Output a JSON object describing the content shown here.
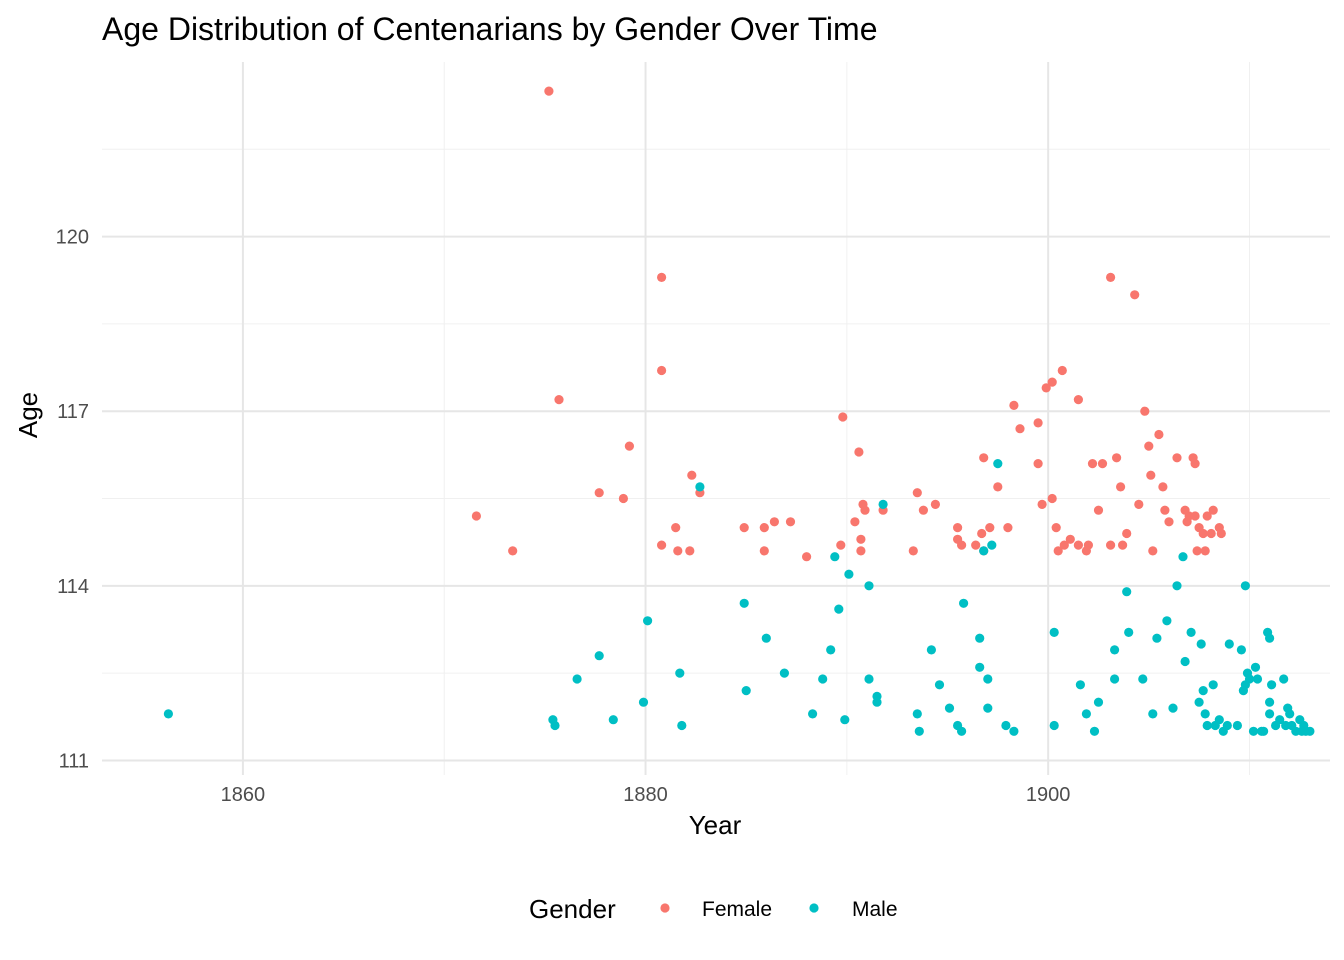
{
  "chart_data": {
    "type": "scatter",
    "title": "Age Distribution of Centenarians by Gender Over Time",
    "xlabel": "Year",
    "ylabel": "Age",
    "xlim": [
      1853,
      1914
    ],
    "ylim": [
      110.75,
      123.0
    ],
    "x_ticks": [
      1860,
      1880,
      1900
    ],
    "x_minor": [
      1850,
      1870,
      1890,
      1910
    ],
    "y_ticks": [
      111,
      114,
      117,
      120
    ],
    "y_minor": [
      112.5,
      115.5,
      118.5,
      121.5
    ],
    "grid": true,
    "legend_position": "bottom",
    "legend_title": "Gender",
    "colors": {
      "Female": "#F8766D",
      "Male": "#00BFC4"
    },
    "series": [
      {
        "name": "Female",
        "points": [
          [
            1875.2,
            122.5
          ],
          [
            1875.7,
            117.2
          ],
          [
            1871.6,
            115.2
          ],
          [
            1873.4,
            114.6
          ],
          [
            1877.7,
            115.6
          ],
          [
            1878.9,
            115.5
          ],
          [
            1879.2,
            116.4
          ],
          [
            1880.8,
            119.3
          ],
          [
            1880.8,
            117.7
          ],
          [
            1880.8,
            114.7
          ],
          [
            1881.5,
            115.0
          ],
          [
            1881.6,
            114.6
          ],
          [
            1882.2,
            114.6
          ],
          [
            1882.3,
            115.9
          ],
          [
            1882.7,
            115.6
          ],
          [
            1884.9,
            115.0
          ],
          [
            1885.9,
            114.6
          ],
          [
            1885.9,
            115.0
          ],
          [
            1886.4,
            115.1
          ],
          [
            1887.2,
            115.1
          ],
          [
            1888.0,
            114.5
          ],
          [
            1889.7,
            114.7
          ],
          [
            1889.8,
            116.9
          ],
          [
            1890.4,
            115.1
          ],
          [
            1890.6,
            116.3
          ],
          [
            1890.7,
            114.6
          ],
          [
            1890.7,
            114.8
          ],
          [
            1890.8,
            115.4
          ],
          [
            1890.9,
            115.3
          ],
          [
            1891.8,
            115.3
          ],
          [
            1893.3,
            114.6
          ],
          [
            1893.5,
            115.6
          ],
          [
            1893.8,
            115.3
          ],
          [
            1894.4,
            115.4
          ],
          [
            1895.5,
            115.0
          ],
          [
            1895.5,
            114.8
          ],
          [
            1895.7,
            114.7
          ],
          [
            1896.4,
            114.7
          ],
          [
            1896.7,
            114.9
          ],
          [
            1896.8,
            116.2
          ],
          [
            1896.8,
            114.6
          ],
          [
            1897.1,
            115.0
          ],
          [
            1897.5,
            115.7
          ],
          [
            1898.0,
            115.0
          ],
          [
            1898.3,
            117.1
          ],
          [
            1898.6,
            116.7
          ],
          [
            1899.5,
            116.8
          ],
          [
            1899.5,
            116.1
          ],
          [
            1899.7,
            115.4
          ],
          [
            1899.9,
            117.4
          ],
          [
            1900.2,
            117.5
          ],
          [
            1900.2,
            115.5
          ],
          [
            1900.4,
            115.0
          ],
          [
            1900.5,
            114.6
          ],
          [
            1900.7,
            117.7
          ],
          [
            1900.8,
            114.7
          ],
          [
            1901.1,
            114.8
          ],
          [
            1901.5,
            114.7
          ],
          [
            1901.5,
            117.2
          ],
          [
            1901.9,
            114.6
          ],
          [
            1902.0,
            114.7
          ],
          [
            1902.2,
            116.1
          ],
          [
            1902.5,
            115.3
          ],
          [
            1902.7,
            116.1
          ],
          [
            1903.1,
            114.7
          ],
          [
            1903.1,
            119.3
          ],
          [
            1903.4,
            116.2
          ],
          [
            1903.6,
            115.7
          ],
          [
            1903.7,
            114.7
          ],
          [
            1903.9,
            114.9
          ],
          [
            1904.3,
            119.0
          ],
          [
            1904.5,
            115.4
          ],
          [
            1904.8,
            117.0
          ],
          [
            1905.0,
            116.4
          ],
          [
            1905.1,
            115.9
          ],
          [
            1905.2,
            114.6
          ],
          [
            1905.5,
            116.6
          ],
          [
            1905.7,
            115.7
          ],
          [
            1905.8,
            115.3
          ],
          [
            1906.0,
            115.1
          ],
          [
            1906.4,
            116.2
          ],
          [
            1906.8,
            115.3
          ],
          [
            1906.9,
            115.1
          ],
          [
            1907.0,
            115.2
          ],
          [
            1907.2,
            116.2
          ],
          [
            1907.3,
            115.2
          ],
          [
            1907.3,
            116.1
          ],
          [
            1907.4,
            114.6
          ],
          [
            1907.5,
            115.0
          ],
          [
            1907.7,
            114.9
          ],
          [
            1907.8,
            114.6
          ],
          [
            1907.9,
            115.2
          ],
          [
            1908.1,
            114.9
          ],
          [
            1908.2,
            115.3
          ],
          [
            1908.5,
            115.0
          ],
          [
            1908.6,
            114.9
          ]
        ]
      },
      {
        "name": "Male",
        "points": [
          [
            1856.3,
            111.8
          ],
          [
            1875.4,
            111.7
          ],
          [
            1875.5,
            111.6
          ],
          [
            1876.6,
            112.4
          ],
          [
            1877.7,
            112.8
          ],
          [
            1878.4,
            111.7
          ],
          [
            1879.9,
            112.0
          ],
          [
            1880.1,
            113.4
          ],
          [
            1881.7,
            112.5
          ],
          [
            1881.8,
            111.6
          ],
          [
            1882.7,
            115.7
          ],
          [
            1884.9,
            113.7
          ],
          [
            1885.0,
            112.2
          ],
          [
            1886.0,
            113.1
          ],
          [
            1886.9,
            112.5
          ],
          [
            1888.3,
            111.8
          ],
          [
            1888.8,
            112.4
          ],
          [
            1889.2,
            112.9
          ],
          [
            1889.4,
            114.5
          ],
          [
            1889.6,
            113.6
          ],
          [
            1889.9,
            111.7
          ],
          [
            1890.1,
            114.2
          ],
          [
            1891.1,
            112.4
          ],
          [
            1891.1,
            114.0
          ],
          [
            1891.5,
            112.1
          ],
          [
            1891.5,
            112.0
          ],
          [
            1891.8,
            115.4
          ],
          [
            1893.5,
            111.8
          ],
          [
            1893.6,
            111.5
          ],
          [
            1894.2,
            112.9
          ],
          [
            1894.6,
            112.3
          ],
          [
            1895.1,
            111.9
          ],
          [
            1895.5,
            111.6
          ],
          [
            1895.7,
            111.5
          ],
          [
            1895.8,
            113.7
          ],
          [
            1896.6,
            112.6
          ],
          [
            1896.6,
            113.1
          ],
          [
            1896.8,
            114.6
          ],
          [
            1897.0,
            112.4
          ],
          [
            1897.0,
            111.9
          ],
          [
            1897.2,
            114.7
          ],
          [
            1897.5,
            116.1
          ],
          [
            1897.9,
            111.6
          ],
          [
            1898.3,
            111.5
          ],
          [
            1900.3,
            113.2
          ],
          [
            1900.3,
            111.6
          ],
          [
            1901.6,
            112.3
          ],
          [
            1901.9,
            111.8
          ],
          [
            1902.3,
            111.5
          ],
          [
            1902.5,
            112.0
          ],
          [
            1903.3,
            112.4
          ],
          [
            1903.3,
            112.9
          ],
          [
            1903.9,
            113.9
          ],
          [
            1904.0,
            113.2
          ],
          [
            1904.7,
            112.4
          ],
          [
            1905.2,
            111.8
          ],
          [
            1905.4,
            113.1
          ],
          [
            1905.9,
            113.4
          ],
          [
            1906.2,
            111.9
          ],
          [
            1906.4,
            114.0
          ],
          [
            1906.7,
            114.5
          ],
          [
            1906.8,
            112.7
          ],
          [
            1907.1,
            113.2
          ],
          [
            1907.5,
            112.0
          ],
          [
            1907.6,
            113.0
          ],
          [
            1907.7,
            112.2
          ],
          [
            1907.8,
            111.8
          ],
          [
            1907.9,
            111.6
          ],
          [
            1908.2,
            112.3
          ],
          [
            1908.3,
            111.6
          ],
          [
            1908.5,
            111.7
          ],
          [
            1908.7,
            111.5
          ],
          [
            1908.9,
            111.6
          ],
          [
            1909.0,
            113.0
          ],
          [
            1909.4,
            111.6
          ],
          [
            1909.6,
            112.9
          ],
          [
            1909.7,
            112.2
          ],
          [
            1909.8,
            112.3
          ],
          [
            1909.8,
            114.0
          ],
          [
            1909.9,
            112.5
          ],
          [
            1910.0,
            112.4
          ],
          [
            1910.2,
            111.5
          ],
          [
            1910.3,
            112.6
          ],
          [
            1910.4,
            112.4
          ],
          [
            1910.6,
            111.5
          ],
          [
            1910.7,
            111.5
          ],
          [
            1910.9,
            113.2
          ],
          [
            1911.0,
            113.1
          ],
          [
            1911.0,
            111.8
          ],
          [
            1911.0,
            112.0
          ],
          [
            1911.1,
            112.3
          ],
          [
            1911.3,
            111.6
          ],
          [
            1911.5,
            111.7
          ],
          [
            1911.7,
            112.4
          ],
          [
            1911.8,
            111.6
          ],
          [
            1911.9,
            111.9
          ],
          [
            1912.0,
            111.8
          ],
          [
            1912.1,
            111.6
          ],
          [
            1912.3,
            111.5
          ],
          [
            1912.5,
            111.7
          ],
          [
            1912.6,
            111.5
          ],
          [
            1912.7,
            111.6
          ],
          [
            1912.8,
            111.5
          ],
          [
            1913.0,
            111.5
          ]
        ]
      }
    ]
  }
}
